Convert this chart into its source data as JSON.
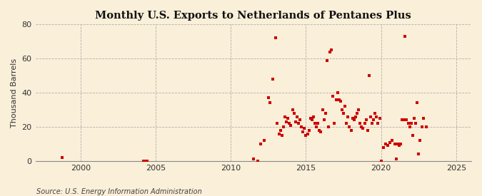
{
  "title": "Monthly U.S. Exports to Netherlands of Pentanes Plus",
  "ylabel": "Thousand Barrels",
  "source": "Source: U.S. Energy Information Administration",
  "xlim": [
    1997,
    2026
  ],
  "ylim": [
    0,
    80
  ],
  "yticks": [
    0,
    20,
    40,
    60,
    80
  ],
  "xticks": [
    2000,
    2005,
    2010,
    2015,
    2020,
    2025
  ],
  "background_color": "#faefd8",
  "plot_bg_color": "#faefd8",
  "marker_color": "#cc0000",
  "marker_size": 8,
  "data_points": [
    [
      1998.8,
      2
    ],
    [
      2004.2,
      0
    ],
    [
      2004.3,
      0
    ],
    [
      2004.35,
      0
    ],
    [
      2004.4,
      0
    ],
    [
      2004.45,
      0
    ],
    [
      2011.5,
      1
    ],
    [
      2011.8,
      0
    ],
    [
      2012.0,
      10
    ],
    [
      2012.2,
      12
    ],
    [
      2012.5,
      37
    ],
    [
      2012.6,
      34
    ],
    [
      2012.8,
      48
    ],
    [
      2013.0,
      72
    ],
    [
      2013.1,
      22
    ],
    [
      2013.2,
      16
    ],
    [
      2013.3,
      18
    ],
    [
      2013.4,
      15
    ],
    [
      2013.5,
      20
    ],
    [
      2013.6,
      26
    ],
    [
      2013.7,
      23
    ],
    [
      2013.8,
      25
    ],
    [
      2013.9,
      22
    ],
    [
      2014.0,
      21
    ],
    [
      2014.1,
      30
    ],
    [
      2014.2,
      28
    ],
    [
      2014.3,
      23
    ],
    [
      2014.4,
      26
    ],
    [
      2014.5,
      22
    ],
    [
      2014.6,
      24
    ],
    [
      2014.7,
      20
    ],
    [
      2014.8,
      17
    ],
    [
      2014.9,
      19
    ],
    [
      2015.0,
      15
    ],
    [
      2015.1,
      16
    ],
    [
      2015.2,
      18
    ],
    [
      2015.3,
      25
    ],
    [
      2015.4,
      24
    ],
    [
      2015.5,
      26
    ],
    [
      2015.6,
      22
    ],
    [
      2015.7,
      20
    ],
    [
      2015.8,
      22
    ],
    [
      2015.9,
      18
    ],
    [
      2016.0,
      17
    ],
    [
      2016.1,
      30
    ],
    [
      2016.2,
      24
    ],
    [
      2016.3,
      28
    ],
    [
      2016.4,
      59
    ],
    [
      2016.5,
      20
    ],
    [
      2016.6,
      64
    ],
    [
      2016.7,
      65
    ],
    [
      2016.8,
      38
    ],
    [
      2016.9,
      22
    ],
    [
      2017.0,
      36
    ],
    [
      2017.1,
      40
    ],
    [
      2017.2,
      36
    ],
    [
      2017.3,
      35
    ],
    [
      2017.4,
      30
    ],
    [
      2017.5,
      28
    ],
    [
      2017.6,
      32
    ],
    [
      2017.7,
      22
    ],
    [
      2017.8,
      26
    ],
    [
      2017.9,
      20
    ],
    [
      2018.0,
      18
    ],
    [
      2018.1,
      25
    ],
    [
      2018.2,
      24
    ],
    [
      2018.3,
      26
    ],
    [
      2018.4,
      28
    ],
    [
      2018.5,
      30
    ],
    [
      2018.6,
      22
    ],
    [
      2018.7,
      20
    ],
    [
      2018.8,
      19
    ],
    [
      2018.9,
      22
    ],
    [
      2019.0,
      24
    ],
    [
      2019.1,
      18
    ],
    [
      2019.2,
      50
    ],
    [
      2019.3,
      26
    ],
    [
      2019.4,
      22
    ],
    [
      2019.5,
      24
    ],
    [
      2019.6,
      28
    ],
    [
      2019.7,
      26
    ],
    [
      2019.8,
      22
    ],
    [
      2019.9,
      25
    ],
    [
      2020.0,
      0
    ],
    [
      2020.15,
      8
    ],
    [
      2020.3,
      10
    ],
    [
      2020.45,
      9
    ],
    [
      2020.6,
      11
    ],
    [
      2020.75,
      12
    ],
    [
      2020.9,
      10
    ],
    [
      2021.0,
      1
    ],
    [
      2021.1,
      10
    ],
    [
      2021.2,
      9
    ],
    [
      2021.3,
      10
    ],
    [
      2021.4,
      24
    ],
    [
      2021.5,
      24
    ],
    [
      2021.6,
      73
    ],
    [
      2021.7,
      24
    ],
    [
      2021.8,
      22
    ],
    [
      2021.9,
      20
    ],
    [
      2022.0,
      22
    ],
    [
      2022.1,
      15
    ],
    [
      2022.2,
      25
    ],
    [
      2022.3,
      22
    ],
    [
      2022.4,
      34
    ],
    [
      2022.5,
      4
    ],
    [
      2022.6,
      12
    ],
    [
      2022.7,
      20
    ],
    [
      2022.8,
      25
    ],
    [
      2023.0,
      20
    ]
  ]
}
